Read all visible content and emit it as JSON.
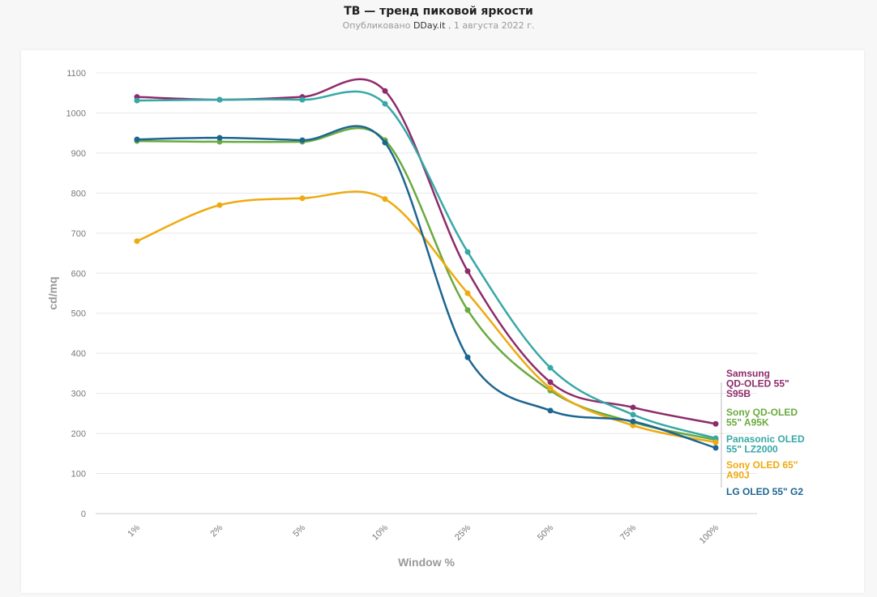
{
  "header": {
    "title": "ТВ — тренд пиковой яркости",
    "published_prefix": "Опубликовано",
    "source": "DDay.it",
    "date": ", 1 августа 2022 г."
  },
  "chart_data": {
    "type": "line",
    "title": "ТВ — тренд пиковой яркости",
    "xlabel": "Window %",
    "ylabel": "cd/mq",
    "categories": [
      "1%",
      "2%",
      "5%",
      "10%",
      "25%",
      "50%",
      "75%",
      "100%"
    ],
    "ylim": [
      0,
      1100
    ],
    "yticks": [
      0,
      100,
      200,
      300,
      400,
      500,
      600,
      700,
      800,
      900,
      1000,
      1100
    ],
    "grid": true,
    "legend": "right, labels at line ends",
    "series": [
      {
        "name": "Samsung QD-OLED 55\" S95B",
        "label_lines": [
          "Samsung",
          "QD-OLED 55\"",
          "S95B"
        ],
        "color": "#8e2c6b",
        "values": [
          1040,
          1033,
          1040,
          1055,
          605,
          328,
          265,
          224
        ]
      },
      {
        "name": "Sony QD-OLED 55\" A95K",
        "label_lines": [
          "Sony QD-OLED",
          "55\" A95K"
        ],
        "color": "#6aaa3f",
        "values": [
          930,
          928,
          928,
          932,
          508,
          307,
          228,
          184
        ]
      },
      {
        "name": "Panasonic OLED 55\" LZ2000",
        "label_lines": [
          "Panasonic OLED",
          "55\" LZ2000"
        ],
        "color": "#36a8a6",
        "values": [
          1031,
          1033,
          1033,
          1023,
          653,
          364,
          247,
          188
        ]
      },
      {
        "name": "Sony OLED 65\" A90J",
        "label_lines": [
          "Sony OLED 65\"",
          "A90J"
        ],
        "color": "#eeaa10",
        "values": [
          680,
          770,
          787,
          785,
          550,
          313,
          220,
          178
        ]
      },
      {
        "name": "LG OLED 55\" G2",
        "label_lines": [
          "LG OLED 55\" G2"
        ],
        "color": "#1d6591",
        "values": [
          934,
          938,
          932,
          926,
          390,
          257,
          230,
          164
        ]
      }
    ]
  }
}
